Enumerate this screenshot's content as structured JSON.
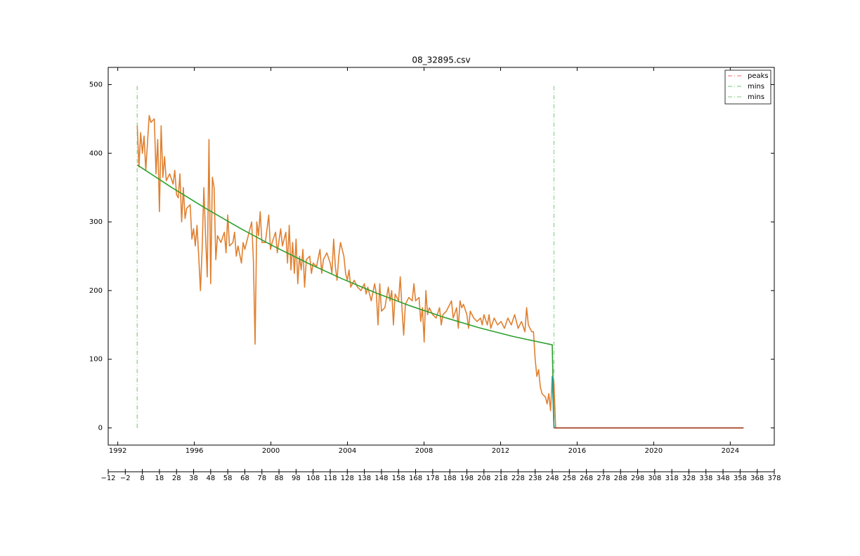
{
  "chart_data": {
    "type": "line",
    "title": "08_32895.csv",
    "xlim": [
      -12,
      378
    ],
    "xticks": [
      {
        "value": -12,
        "label": "−12"
      },
      {
        "value": -2,
        "label": "−2"
      },
      8,
      18,
      28,
      38,
      48,
      58,
      68,
      78,
      88,
      98,
      108,
      118,
      128,
      138,
      148,
      158,
      168,
      178,
      188,
      198,
      208,
      218,
      228,
      238,
      248,
      258,
      268,
      278,
      288,
      298,
      308,
      318,
      328,
      338,
      348,
      358,
      368,
      378
    ],
    "date_axis": {
      "xlim": [
        1991.5,
        2026.3
      ],
      "xticks": [
        1992,
        1996,
        2000,
        2004,
        2008,
        2012,
        2016,
        2020,
        2024
      ]
    },
    "ylim": [
      -25,
      525
    ],
    "yticks": [
      0,
      100,
      200,
      300,
      400,
      500
    ],
    "legend": "upper right",
    "series": [
      {
        "color": "#e08030",
        "x": [
          5,
          6,
          7,
          8,
          9,
          10,
          12,
          13,
          15,
          16,
          17,
          18,
          19,
          20,
          21,
          22,
          24,
          26,
          27,
          28,
          29,
          30,
          31,
          32,
          33,
          34,
          36,
          37,
          38,
          39,
          40,
          41,
          42,
          43,
          44,
          45,
          46,
          47,
          48,
          49,
          50,
          51,
          52,
          54,
          56,
          57,
          58,
          59,
          61,
          62,
          63,
          64,
          66,
          67,
          68,
          70,
          72,
          73,
          74,
          75,
          76,
          77,
          78,
          80,
          82,
          83,
          84,
          86,
          87,
          89,
          90,
          92,
          93,
          94,
          95,
          96,
          97,
          98,
          99,
          100,
          101,
          102,
          103,
          104,
          106,
          107,
          108,
          110,
          112,
          113,
          114,
          116,
          118,
          119,
          120,
          121,
          122,
          123,
          124,
          126,
          127,
          128,
          129,
          130,
          132,
          134,
          136,
          138,
          139,
          140,
          142,
          144,
          145,
          146,
          147,
          148,
          150,
          152,
          153,
          154,
          155,
          156,
          158,
          159,
          160,
          161,
          162,
          164,
          166,
          167,
          168,
          170,
          171,
          172,
          173,
          174,
          175,
          176,
          178,
          180,
          182,
          183,
          184,
          186,
          188,
          189,
          190,
          192,
          193,
          194,
          195,
          196,
          198,
          199,
          200,
          202,
          204,
          206,
          207,
          208,
          210,
          211,
          212,
          214,
          216,
          218,
          220,
          222,
          224,
          226,
          228,
          230,
          232,
          233,
          234,
          236,
          237,
          238,
          239,
          240,
          241,
          242,
          244,
          245,
          246,
          247,
          248,
          249,
          250,
          360
        ],
        "values": [
          440,
          380,
          430,
          400,
          425,
          375,
          455,
          445,
          450,
          370,
          420,
          315,
          440,
          365,
          395,
          360,
          370,
          355,
          375,
          340,
          335,
          370,
          300,
          350,
          305,
          320,
          325,
          275,
          290,
          265,
          295,
          250,
          200,
          260,
          350,
          280,
          220,
          420,
          210,
          365,
          350,
          245,
          280,
          270,
          285,
          255,
          310,
          265,
          270,
          285,
          250,
          265,
          240,
          270,
          260,
          280,
          300,
          245,
          122,
          300,
          280,
          315,
          270,
          270,
          310,
          260,
          270,
          285,
          255,
          290,
          265,
          285,
          240,
          295,
          230,
          270,
          225,
          275,
          210,
          250,
          230,
          260,
          205,
          245,
          250,
          225,
          240,
          235,
          260,
          225,
          245,
          255,
          240,
          225,
          275,
          235,
          215,
          250,
          270,
          250,
          225,
          215,
          230,
          205,
          215,
          205,
          200,
          210,
          195,
          205,
          185,
          210,
          195,
          150,
          210,
          170,
          175,
          205,
          185,
          200,
          150,
          195,
          185,
          220,
          175,
          135,
          180,
          190,
          185,
          210,
          185,
          190,
          155,
          175,
          125,
          200,
          165,
          175,
          165,
          160,
          175,
          150,
          165,
          170,
          180,
          185,
          160,
          175,
          145,
          185,
          175,
          180,
          165,
          145,
          170,
          160,
          155,
          160,
          150,
          165,
          150,
          165,
          145,
          160,
          150,
          155,
          145,
          160,
          150,
          165,
          145,
          155,
          140,
          175,
          150,
          140,
          140,
          100,
          75,
          85,
          60,
          50,
          45,
          35,
          50,
          25,
          75,
          65,
          0,
          0
        ]
      },
      {
        "color": "#2ca02c",
        "x": [
          5,
          25,
          45,
          65,
          85,
          105,
          125,
          145,
          165,
          185,
          205,
          225,
          248,
          249
        ],
        "values": [
          383,
          350.4,
          319.8,
          291.1,
          264.4,
          239.8,
          217.1,
          196.3,
          177.6,
          160.8,
          146,
          133.2,
          121,
          0
        ]
      },
      {
        "color": "#17a0a0",
        "x": [
          248,
          249
        ],
        "values": [
          75,
          0
        ]
      },
      {
        "color": "#a0402a",
        "x": [
          249,
          360
        ],
        "values": [
          0,
          0
        ]
      }
    ],
    "vlines": [
      {
        "name": "peaks",
        "color": "#ff9999",
        "x": [
          5
        ]
      },
      {
        "name": "mins",
        "color": "#99dd99",
        "x": [
          5,
          249
        ]
      },
      {
        "name": "mins",
        "color": "#aaddaa",
        "x": [
          249
        ]
      }
    ],
    "vline_ylim": [
      0,
      500
    ]
  }
}
